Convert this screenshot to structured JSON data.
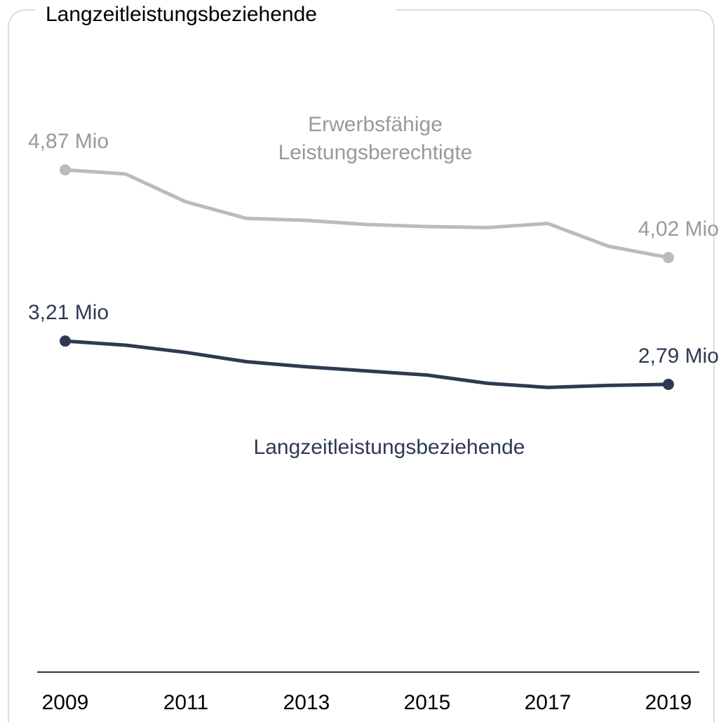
{
  "chart_data": {
    "type": "line",
    "title": "Langzeitleistungsbeziehende",
    "x": [
      2009,
      2010,
      2011,
      2012,
      2013,
      2014,
      2015,
      2016,
      2017,
      2018,
      2019
    ],
    "series": [
      {
        "name": "Erwerbsfähige Leistungsberechtigte",
        "color": "#bbbbbb",
        "values": [
          4.87,
          4.83,
          4.56,
          4.4,
          4.38,
          4.34,
          4.32,
          4.31,
          4.35,
          4.13,
          4.02
        ],
        "value_labels": [
          "4,87 Mio",
          null,
          null,
          null,
          null,
          null,
          null,
          null,
          null,
          null,
          "4,02 Mio"
        ]
      },
      {
        "name": "Langzeitleistungsbeziehende",
        "color": "#2e3a52",
        "values": [
          3.21,
          3.17,
          3.1,
          3.01,
          2.96,
          2.92,
          2.88,
          2.8,
          2.76,
          2.78,
          2.79
        ],
        "value_labels": [
          "3,21 Mio",
          null,
          null,
          null,
          null,
          null,
          null,
          null,
          null,
          null,
          "2,79 Mio"
        ]
      }
    ],
    "xlim": [
      2009,
      2019
    ],
    "xticks": [
      2009,
      2011,
      2013,
      2015,
      2017,
      2019
    ],
    "ylim": [
      0,
      6
    ]
  }
}
